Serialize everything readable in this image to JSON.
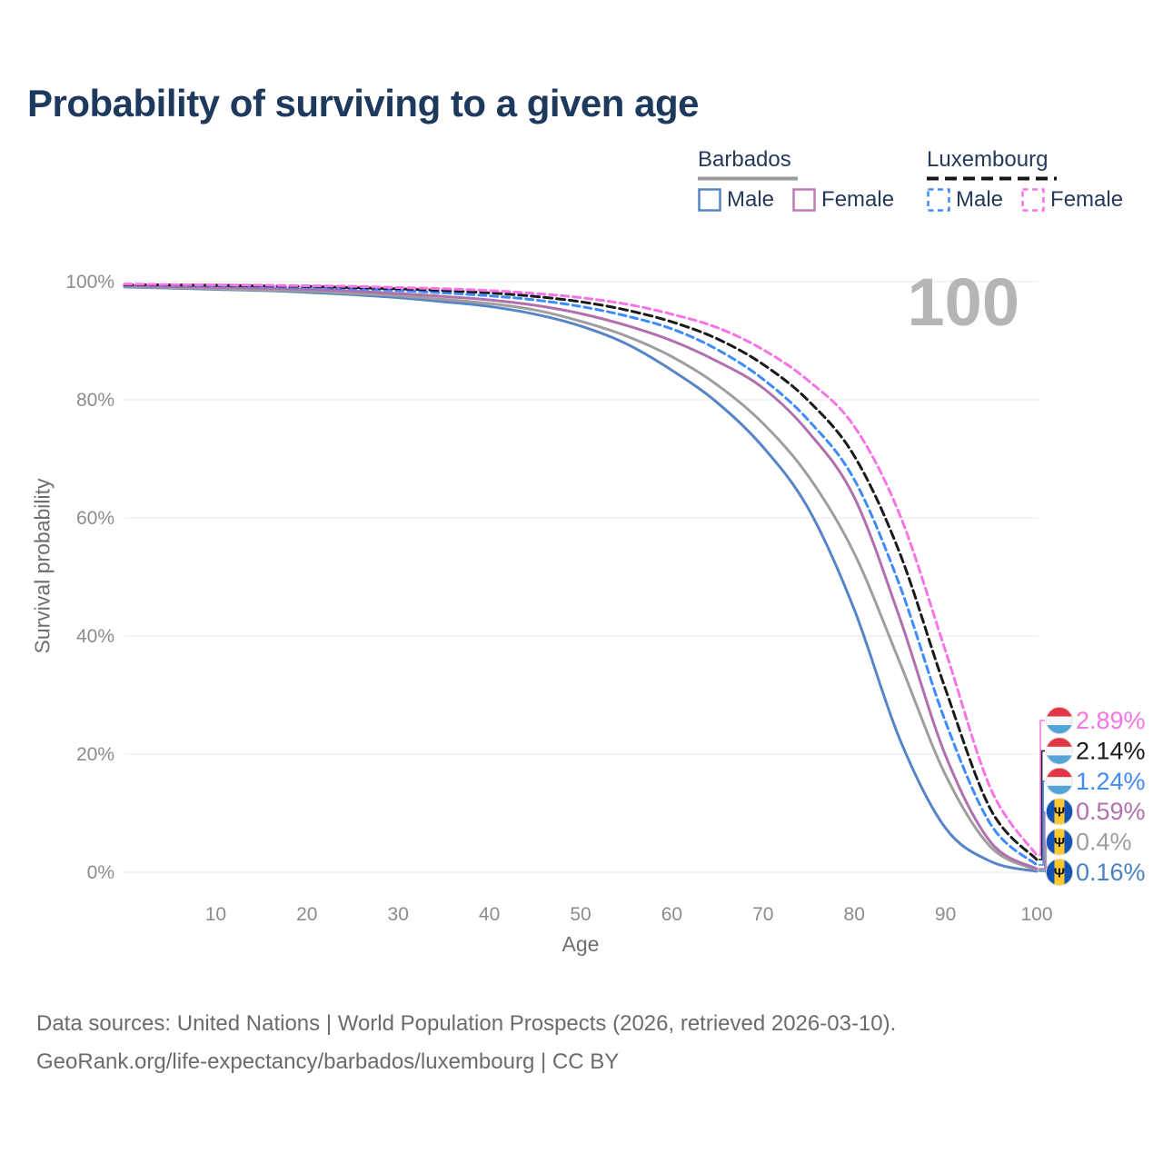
{
  "title": "Probability of surviving to a given age",
  "watermark_age": "100",
  "legend": {
    "groups": [
      {
        "name": "Barbados",
        "line_style": "solid",
        "underline_color": "#9a9a9a",
        "items": [
          {
            "label": "Male",
            "color": "#5585c7"
          },
          {
            "label": "Female",
            "color": "#bd7ab3"
          }
        ]
      },
      {
        "name": "Luxembourg",
        "line_style": "dashed",
        "underline_color": "#151515",
        "items": [
          {
            "label": "Male",
            "color": "#3d8bfd"
          },
          {
            "label": "Female",
            "color": "#f873e3"
          }
        ]
      }
    ]
  },
  "chart_data": {
    "type": "line",
    "title": "Probability of surviving to a given age",
    "xlabel": "Age",
    "ylabel": "Survival probability",
    "xlim": [
      0,
      100
    ],
    "ylim": [
      0,
      100
    ],
    "grid": "horizontal",
    "legend_position": "top-right",
    "xticks": [
      10,
      20,
      30,
      40,
      50,
      60,
      70,
      80,
      90,
      100
    ],
    "yticks": [
      {
        "value": 0,
        "label": "0%"
      },
      {
        "value": 20,
        "label": "20%"
      },
      {
        "value": 40,
        "label": "40%"
      },
      {
        "value": 60,
        "label": "60%"
      },
      {
        "value": 80,
        "label": "80%"
      },
      {
        "value": 100,
        "label": "100%"
      }
    ],
    "x": [
      0,
      5,
      10,
      15,
      20,
      25,
      30,
      35,
      40,
      45,
      50,
      55,
      60,
      65,
      70,
      75,
      80,
      85,
      90,
      95,
      100
    ],
    "series": [
      {
        "name": "Barbados Male",
        "country": "Barbados",
        "sex": "Male",
        "color": "#5585c7",
        "label_color": "#4a7fc4",
        "dash": "",
        "flag": "bb",
        "end_label": "0.16%",
        "values": [
          99.1,
          98.9,
          98.7,
          98.5,
          98.2,
          97.8,
          97.3,
          96.6,
          95.8,
          94.5,
          92.5,
          89.5,
          85.0,
          79.5,
          72.0,
          61.5,
          44.5,
          22.5,
          7.5,
          1.8,
          0.16
        ]
      },
      {
        "name": "Barbados Both sexes",
        "country": "Barbados",
        "sex": "Both",
        "color": "#9e9e9e",
        "label_color": "#9e9e9e",
        "dash": "",
        "flag": "bb",
        "end_label": "0.4%",
        "values": [
          99.2,
          99.0,
          98.8,
          98.6,
          98.4,
          98.0,
          97.6,
          97.0,
          96.3,
          95.2,
          93.3,
          90.8,
          87.3,
          82.5,
          76.0,
          67.0,
          54.0,
          35.5,
          16.5,
          4.2,
          0.4
        ]
      },
      {
        "name": "Barbados Female",
        "country": "Barbados",
        "sex": "Female",
        "color": "#b06fad",
        "label_color": "#b06fad",
        "dash": "",
        "flag": "bb",
        "end_label": "0.59%",
        "values": [
          99.3,
          99.2,
          99.1,
          98.9,
          98.7,
          98.4,
          98.0,
          97.5,
          96.9,
          96.0,
          94.6,
          92.6,
          90.0,
          86.5,
          82.0,
          74.5,
          63.5,
          43.0,
          19.8,
          5.0,
          0.59
        ]
      },
      {
        "name": "Luxembourg Male",
        "country": "Luxembourg",
        "sex": "Male",
        "color": "#3d8bfd",
        "label_color": "#3d8bfd",
        "dash": "8 5",
        "flag": "lu",
        "end_label": "1.24%",
        "values": [
          99.5,
          99.4,
          99.3,
          99.2,
          99.0,
          98.8,
          98.5,
          98.1,
          97.6,
          96.9,
          95.8,
          94.2,
          92.0,
          88.5,
          83.5,
          76.5,
          66.5,
          48.5,
          25.5,
          8.0,
          1.24
        ]
      },
      {
        "name": "Luxembourg Both sexes",
        "country": "Luxembourg",
        "sex": "Both",
        "color": "#1a1a1a",
        "label_color": "#1a1a1a",
        "dash": "9 5",
        "flag": "lu",
        "end_label": "2.14%",
        "values": [
          99.5,
          99.45,
          99.4,
          99.3,
          99.2,
          99.0,
          98.8,
          98.5,
          98.1,
          97.5,
          96.6,
          95.2,
          93.2,
          90.3,
          86.0,
          79.8,
          70.5,
          54.0,
          31.0,
          10.5,
          2.14
        ]
      },
      {
        "name": "Luxembourg Female",
        "country": "Luxembourg",
        "sex": "Female",
        "color": "#f873e3",
        "label_color": "#f873e3",
        "dash": "8 5",
        "flag": "lu",
        "end_label": "2.89%",
        "values": [
          99.6,
          99.5,
          99.45,
          99.4,
          99.3,
          99.2,
          99.0,
          98.8,
          98.5,
          98.0,
          97.3,
          96.2,
          94.5,
          92.2,
          88.5,
          83.2,
          75.5,
          60.5,
          37.5,
          14.0,
          2.89
        ]
      }
    ]
  },
  "flag_colors": {
    "luxembourg": {
      "red": "#e23545",
      "white": "#f5f6f7",
      "blue": "#55a4d8"
    },
    "barbados": {
      "blue": "#1353b4",
      "yellow": "#ffc82e",
      "trident": "#111111"
    }
  },
  "footer": {
    "line1": "Data sources: United Nations | World Population Prospects (2026, retrieved 2026-03-10).",
    "line2": "GeoRank.org/life-expectancy/barbados/luxembourg | CC BY"
  }
}
